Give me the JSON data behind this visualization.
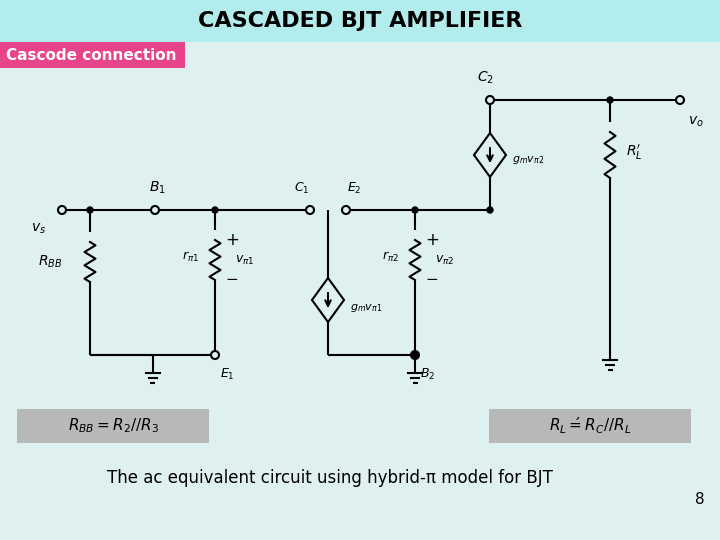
{
  "title": "CASCADED BJT AMPLIFIER",
  "title_bg": "#b3ecec",
  "subtitle": "Cascode connection",
  "subtitle_bg": "#e8448a",
  "subtitle_text_color": "white",
  "bottom_text": "The ac equivalent circuit using hybrid-π model for BJT",
  "page_num": "8",
  "bg_color": "#dff0f0",
  "formula_left": "$R_{BB} = R_2 // R_3$",
  "formula_right": "$R_L\\'= R_C // R_L$",
  "formula_bg": "#b8b8b8"
}
